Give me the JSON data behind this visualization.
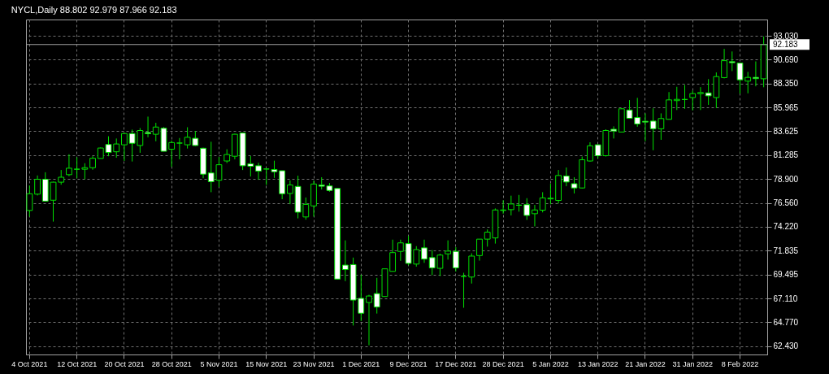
{
  "chart_data": {
    "type": "candlestick",
    "title": "NYCL,Daily  88.802 92.979 87.966 92.183",
    "categories": [
      "4 Oct 2021",
      null,
      null,
      null,
      null,
      null,
      "12 Oct 2021",
      null,
      null,
      null,
      null,
      null,
      "20 Oct 2021",
      null,
      null,
      null,
      null,
      null,
      "28 Oct 2021",
      null,
      null,
      null,
      null,
      null,
      "5 Nov 2021",
      null,
      null,
      null,
      null,
      null,
      "15 Nov 2021",
      null,
      null,
      null,
      null,
      null,
      "23 Nov 2021",
      null,
      null,
      null,
      null,
      null,
      "1 Dec 2021",
      null,
      null,
      null,
      null,
      null,
      "9 Dec 2021",
      null,
      null,
      null,
      null,
      null,
      "17 Dec 2021",
      null,
      null,
      null,
      null,
      null,
      "28 Dec 2021",
      null,
      null,
      null,
      null,
      null,
      "5 Jan 2022",
      null,
      null,
      null,
      null,
      null,
      "13 Jan 2022",
      null,
      null,
      null,
      null,
      null,
      "21 Jan 2022",
      null,
      null,
      null,
      null,
      null,
      "31 Jan 2022",
      null,
      null,
      null,
      null,
      null,
      "8 Feb 2022",
      null,
      null,
      null
    ],
    "ohlc": [
      [
        75.81,
        78.28,
        75.2,
        77.46
      ],
      [
        77.42,
        79.26,
        77.29,
        78.89
      ],
      [
        78.89,
        79.58,
        76.73,
        76.73
      ],
      [
        76.82,
        78.65,
        74.71,
        78.6
      ],
      [
        78.6,
        79.8,
        78.35,
        79.09
      ],
      [
        79.34,
        81.36,
        79.19,
        79.98
      ],
      [
        79.88,
        81.06,
        78.99,
        79.88
      ],
      [
        79.88,
        80.47,
        78.89,
        80.03
      ],
      [
        80.03,
        81.16,
        79.83,
        80.96
      ],
      [
        80.94,
        82.02,
        80.94,
        81.97
      ],
      [
        82.32,
        83.13,
        81.16,
        81.53
      ],
      [
        81.6,
        82.91,
        81.01,
        82.37
      ],
      [
        82.29,
        83.45,
        80.69,
        83.4
      ],
      [
        83.4,
        83.79,
        80.64,
        82.44
      ],
      [
        82.22,
        83.94,
        81.5,
        83.7
      ],
      [
        83.5,
        85.07,
        83.03,
        83.38
      ],
      [
        83.33,
        84.46,
        82.64,
        84.04
      ],
      [
        83.92,
        84.04,
        81.65,
        81.65
      ],
      [
        81.85,
        82.71,
        80.12,
        82.51
      ],
      [
        82.46,
        82.96,
        80.86,
        82.46
      ],
      [
        82.29,
        84.02,
        81.92,
        83.03
      ],
      [
        82.93,
        83.65,
        82.17,
        82.22
      ],
      [
        81.95,
        82.0,
        78.99,
        79.39
      ],
      [
        79.51,
        82.59,
        77.61,
        78.65
      ],
      [
        78.79,
        81.08,
        78.13,
        80.32
      ],
      [
        80.69,
        81.85,
        80.49,
        81.33
      ],
      [
        81.16,
        83.38,
        80.86,
        83.33
      ],
      [
        83.45,
        83.5,
        79.8,
        80.22
      ],
      [
        80.42,
        81.18,
        79.16,
        80.17
      ],
      [
        80.22,
        80.52,
        78.84,
        79.7
      ],
      [
        79.9,
        79.95,
        78.33,
        79.9
      ],
      [
        79.85,
        80.72,
        79.02,
        79.63
      ],
      [
        79.73,
        79.73,
        76.92,
        77.46
      ],
      [
        77.49,
        78.77,
        76.43,
        78.33
      ],
      [
        78.18,
        79.24,
        75.03,
        75.64
      ],
      [
        75.17,
        77.09,
        74.9,
        76.41
      ],
      [
        76.26,
        78.77,
        75.2,
        78.42
      ],
      [
        78.33,
        79.09,
        77.88,
        78.2
      ],
      [
        78.23,
        78.52,
        77.66,
        77.78
      ],
      [
        77.98,
        77.98,
        69.04,
        69.04
      ],
      [
        70.42,
        72.86,
        68.84,
        69.98
      ],
      [
        70.47,
        71.16,
        64.46,
        66.97
      ],
      [
        67.14,
        69.48,
        64.9,
        65.67
      ],
      [
        66.73,
        67.49,
        62.51,
        67.37
      ],
      [
        67.61,
        69.16,
        65.64,
        66.28
      ],
      [
        67.32,
        70.05,
        67.32,
        70.05
      ],
      [
        69.8,
        72.93,
        69.8,
        71.65
      ],
      [
        71.77,
        72.93,
        70.84,
        72.61
      ],
      [
        72.54,
        73.3,
        70.4,
        70.59
      ],
      [
        70.52,
        72.29,
        70.27,
        71.95
      ],
      [
        72.12,
        72.93,
        70.64,
        71.01
      ],
      [
        71.16,
        71.9,
        69.43,
        70.15
      ],
      [
        70.1,
        71.55,
        69.34,
        71.41
      ],
      [
        71.53,
        72.86,
        70.96,
        71.8
      ],
      [
        71.77,
        72.19,
        69.78,
        70.15
      ],
      [
        69.31,
        69.66,
        66.21,
        69.31
      ],
      [
        69.24,
        71.58,
        68.6,
        71.31
      ],
      [
        71.36,
        72.98,
        70.86,
        72.98
      ],
      [
        72.98,
        73.94,
        72.24,
        73.67
      ],
      [
        73.1,
        76.01,
        72.54,
        75.86
      ],
      [
        75.81,
        76.82,
        75.49,
        75.86
      ],
      [
        75.89,
        77.27,
        75.32,
        76.45
      ],
      [
        76.33,
        77.34,
        75.69,
        76.33
      ],
      [
        76.38,
        77.02,
        74.88,
        75.32
      ],
      [
        75.49,
        76.36,
        74.24,
        75.86
      ],
      [
        75.84,
        77.61,
        75.62,
        77.05
      ],
      [
        76.95,
        78.47,
        76.41,
        77.02
      ],
      [
        76.8,
        79.8,
        76.5,
        79.26
      ],
      [
        79.21,
        80.05,
        78.2,
        78.62
      ],
      [
        78.45,
        79.09,
        77.49,
        78.03
      ],
      [
        78.03,
        81.13,
        77.98,
        80.81
      ],
      [
        80.69,
        82.54,
        80.64,
        82.19
      ],
      [
        82.29,
        82.34,
        80.94,
        81.21
      ],
      [
        81.21,
        83.82,
        81.13,
        83.7
      ],
      [
        83.82,
        84.11,
        82.91,
        83.65
      ],
      [
        83.55,
        85.91,
        83.55,
        85.84
      ],
      [
        85.72,
        86.7,
        84.88,
        84.9
      ],
      [
        84.98,
        86.92,
        84.07,
        84.34
      ],
      [
        84.61,
        85.39,
        82.64,
        84.53
      ],
      [
        84.63,
        85.89,
        81.75,
        83.87
      ],
      [
        83.87,
        85.39,
        82.78,
        84.88
      ],
      [
        84.8,
        87.49,
        84.78,
        86.72
      ],
      [
        86.65,
        88.01,
        85.72,
        86.77
      ],
      [
        86.75,
        88.2,
        85.84,
        86.77
      ],
      [
        86.95,
        87.64,
        85.69,
        87.34
      ],
      [
        87.34,
        87.98,
        85.72,
        87.44
      ],
      [
        87.41,
        88.77,
        86.23,
        87.12
      ],
      [
        86.95,
        89.43,
        85.91,
        89.02
      ],
      [
        88.92,
        91.75,
        88.84,
        90.59
      ],
      [
        90.49,
        91.5,
        89.56,
        90.39
      ],
      [
        90.35,
        90.35,
        87.34,
        88.7
      ],
      [
        88.57,
        89.48,
        87.37,
        88.94
      ],
      [
        88.94,
        90.52,
        88.06,
        88.82
      ],
      [
        88.802,
        92.979,
        87.966,
        92.183
      ]
    ],
    "color": "#00e000",
    "ylim": [
      61.6,
      94.65
    ],
    "yticks": [
      {
        "value": 62.43,
        "label": "62.430"
      },
      {
        "value": 64.77,
        "label": "64.770"
      },
      {
        "value": 67.11,
        "label": "67.110"
      },
      {
        "value": 69.495,
        "label": "69.495"
      },
      {
        "value": 71.835,
        "label": "71.835"
      },
      {
        "value": 74.22,
        "label": "74.220"
      },
      {
        "value": 76.56,
        "label": "76.560"
      },
      {
        "value": 78.9,
        "label": "78.900"
      },
      {
        "value": 81.285,
        "label": "81.285"
      },
      {
        "value": 83.625,
        "label": "83.625"
      },
      {
        "value": 85.965,
        "label": "85.965"
      },
      {
        "value": 88.35,
        "label": "88.350"
      },
      {
        "value": 90.69,
        "label": "90.690"
      },
      {
        "value": 93.03,
        "label": "93.030"
      }
    ],
    "ref_lines": [
      {
        "axis": "y",
        "value": 92.183,
        "label": "92.183",
        "color": "#a0a0a0"
      }
    ],
    "grid": true
  }
}
